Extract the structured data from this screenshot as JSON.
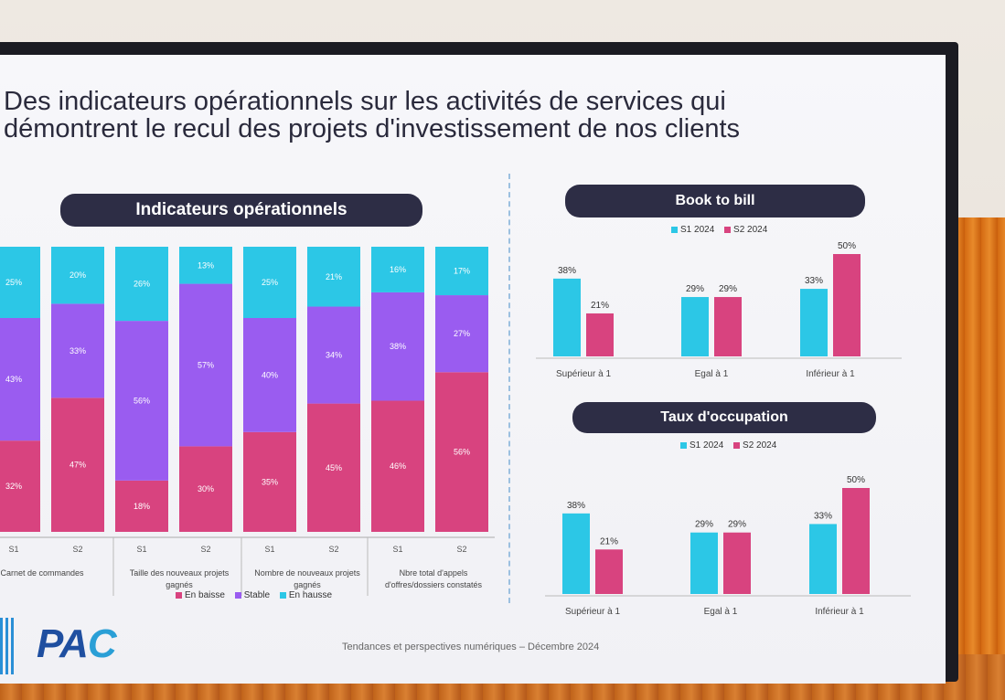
{
  "slide": {
    "title_line1": "Des indicateurs opérationnels sur les activités de services qui",
    "title_line2": "démontrent le recul des projets d'investissement de nos clients",
    "footer": "Tendances et perspectives numériques – Décembre 2024",
    "logo_text": "PAC"
  },
  "colors": {
    "baisse": "#d8437f",
    "stable": "#9a5cf0",
    "hausse": "#2cc7e6",
    "s1": "#2cc7e6",
    "s2": "#d8437f",
    "pill": "#2d2d45"
  },
  "chart_data": [
    {
      "type": "bar",
      "stacked": true,
      "title": "Indicateurs opérationnels",
      "groups": [
        "Carnet de commandes",
        "Taille des nouveaux projets gagnés",
        "Nombre de nouveaux projets gagnés",
        "Nbre total d'appels d'offres/dossiers constatés"
      ],
      "categories": [
        "S1",
        "S2",
        "S1",
        "S2",
        "S1",
        "S2",
        "S1",
        "S2"
      ],
      "series": [
        {
          "name": "En baisse",
          "values": [
            32,
            47,
            18,
            30,
            35,
            45,
            46,
            56
          ]
        },
        {
          "name": "Stable",
          "values": [
            43,
            33,
            56,
            57,
            40,
            34,
            38,
            27
          ]
        },
        {
          "name": "En hausse",
          "values": [
            25,
            20,
            26,
            13,
            25,
            21,
            16,
            17
          ]
        }
      ],
      "ylim": [
        0,
        100
      ],
      "legend": "bottom"
    },
    {
      "type": "bar",
      "title": "Book to bill",
      "categories": [
        "Supérieur à 1",
        "Egal à 1",
        "Inférieur à 1"
      ],
      "series": [
        {
          "name": "S1 2024",
          "values": [
            38,
            29,
            33
          ]
        },
        {
          "name": "S2 2024",
          "values": [
            21,
            29,
            50
          ]
        }
      ],
      "legend": "top"
    },
    {
      "type": "bar",
      "title": "Taux d'occupation",
      "categories": [
        "Supérieur à 1",
        "Egal à 1",
        "Inférieur à 1"
      ],
      "series": [
        {
          "name": "S1 2024",
          "values": [
            38,
            29,
            33
          ]
        },
        {
          "name": "S2 2024",
          "values": [
            21,
            29,
            50
          ]
        }
      ],
      "legend": "top"
    }
  ]
}
